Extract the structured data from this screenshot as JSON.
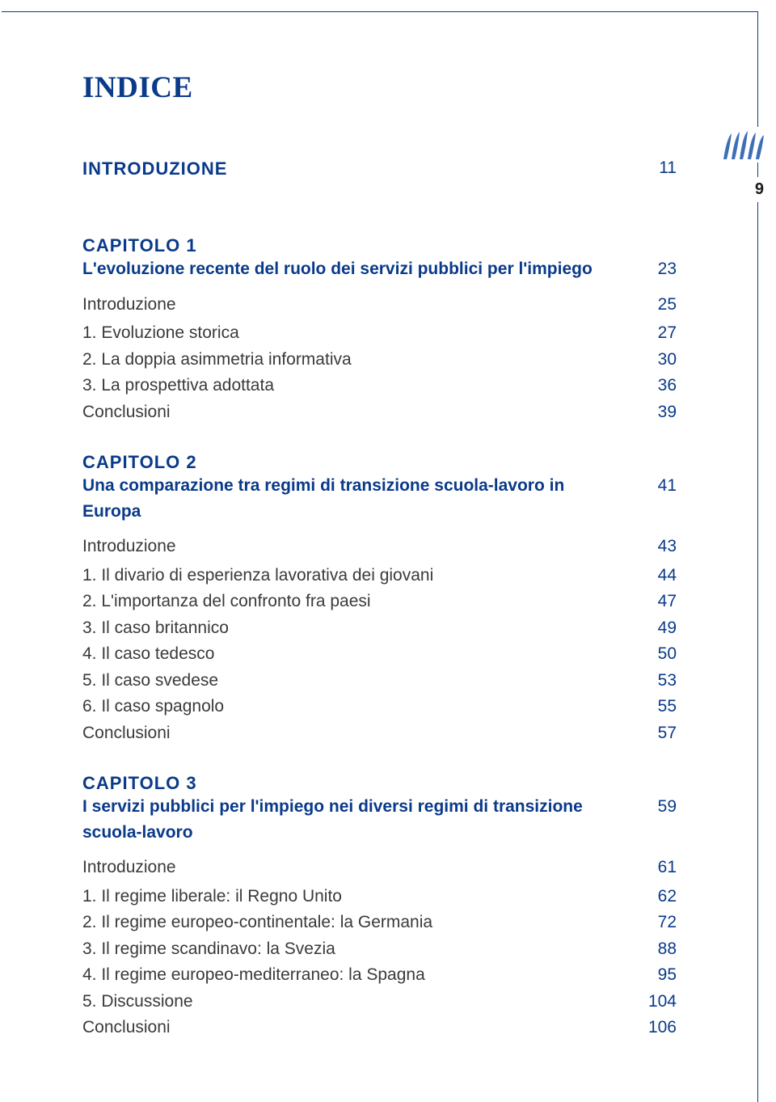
{
  "colors": {
    "accent": "#0a3a8a",
    "body_text": "#3a3a3a",
    "page_bg": "#ffffff",
    "border": "#0a3a8a",
    "logo_fill": "#3d6fb5"
  },
  "typography": {
    "title_fontsize_pt": 28,
    "heading_fontsize_pt": 17,
    "body_fontsize_pt": 16
  },
  "page": {
    "title": "INDICE",
    "side_page_number": "9"
  },
  "introduzione": {
    "label": "INTRODUZIONE",
    "page": "11"
  },
  "chapters": [
    {
      "head": "CAPITOLO 1",
      "title": "L'evoluzione recente del ruolo dei servizi pubblici per l'impiego",
      "title_page": "23",
      "entries": [
        {
          "label": "Introduzione",
          "page": "25",
          "is_intro": true
        },
        {
          "label": "1.  Evoluzione storica",
          "page": "27"
        },
        {
          "label": "2.  La doppia asimmetria informativa",
          "page": "30"
        },
        {
          "label": "3.  La prospettiva adottata",
          "page": "36"
        },
        {
          "label": "Conclusioni",
          "page": "39"
        }
      ]
    },
    {
      "head": "CAPITOLO 2",
      "title": "Una comparazione tra regimi di transizione scuola-lavoro in Europa",
      "title_page": "41",
      "entries": [
        {
          "label": "Introduzione",
          "page": "43",
          "is_intro": true
        },
        {
          "label": "1.  Il divario di esperienza lavorativa dei giovani",
          "page": "44"
        },
        {
          "label": "2.  L'importanza del confronto fra paesi",
          "page": "47"
        },
        {
          "label": "3.  Il caso britannico",
          "page": "49"
        },
        {
          "label": "4.  Il caso tedesco",
          "page": "50"
        },
        {
          "label": "5.  Il caso svedese",
          "page": "53"
        },
        {
          "label": "6.  Il caso spagnolo",
          "page": "55"
        },
        {
          "label": "Conclusioni",
          "page": "57"
        }
      ]
    },
    {
      "head": "CAPITOLO 3",
      "title": "I servizi pubblici per l'impiego nei diversi regimi di transizione scuola-lavoro",
      "title_page": "59",
      "entries": [
        {
          "label": "Introduzione",
          "page": "61",
          "is_intro": true
        },
        {
          "label": "1.  Il regime liberale: il Regno Unito",
          "page": "62"
        },
        {
          "label": "2.  Il regime europeo-continentale: la Germania",
          "page": "72"
        },
        {
          "label": "3.  Il regime scandinavo: la Svezia",
          "page": "88"
        },
        {
          "label": "4.  Il regime europeo-mediterraneo: la Spagna",
          "page": "95"
        },
        {
          "label": "5.  Discussione",
          "page": "104"
        },
        {
          "label": "Conclusioni",
          "page": "106"
        }
      ]
    }
  ]
}
